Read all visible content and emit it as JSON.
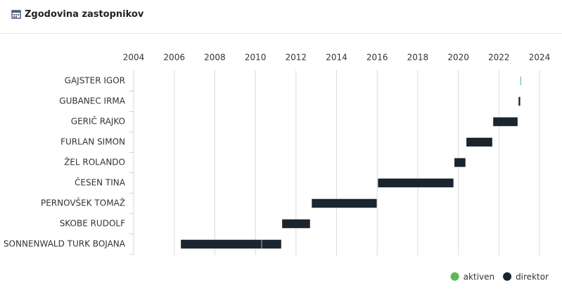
{
  "header": {
    "title": "Zgodovina zastopnikov"
  },
  "chart_data": {
    "type": "gantt",
    "categories": [
      "GAJSTER IGOR",
      "GUBANEC IRMA",
      "GERIČ RAJKO",
      "FURLAN SIMON",
      "ŽEL ROLANDO",
      "ČESEN TINA",
      "PERNOVŠEK TOMAŽ",
      "SKOBE RUDOLF",
      "SONNENWALD TURK BOJANA"
    ],
    "xlim": [
      2004,
      2024
    ],
    "xticks": [
      2004,
      2006,
      2008,
      2010,
      2012,
      2014,
      2016,
      2018,
      2020,
      2022,
      2024
    ],
    "grid": true,
    "legend": "bottom-right",
    "series": [
      {
        "name": "aktiven",
        "color": "#5cb85c",
        "values": [
          [
            [
              2023.05,
              2023.1
            ]
          ],
          null,
          null,
          null,
          null,
          null,
          null,
          null,
          null
        ]
      },
      {
        "name": "direktor",
        "color": "#1b2530",
        "values": [
          null,
          [
            [
              2022.96,
              2023.06
            ]
          ],
          [
            [
              2021.71,
              2022.93
            ]
          ],
          [
            [
              2020.39,
              2021.68
            ]
          ],
          [
            [
              2019.8,
              2020.36
            ]
          ],
          [
            [
              2016.03,
              2019.77
            ]
          ],
          [
            [
              2012.77,
              2015.99
            ]
          ],
          [
            [
              2011.31,
              2012.7
            ]
          ],
          [
            [
              2006.32,
              2010.31
            ],
            [
              2010.31,
              2011.28
            ]
          ]
        ]
      }
    ]
  }
}
